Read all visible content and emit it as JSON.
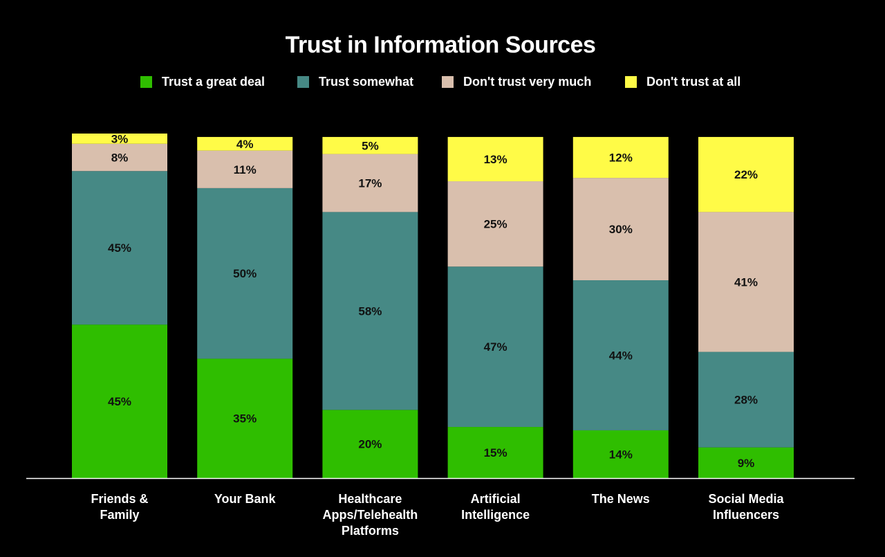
{
  "chart_data": {
    "type": "bar",
    "stacked": true,
    "orientation": "vertical",
    "title": "Trust in Information Sources",
    "xlabel": "",
    "ylabel": "",
    "ylim": [
      0,
      101
    ],
    "grid": false,
    "legend_position": "top",
    "categories": [
      [
        "Friends &",
        "Family"
      ],
      [
        "Your Bank"
      ],
      [
        "Healthcare",
        "Apps/Telehealth",
        "Platforms"
      ],
      [
        "Artificial",
        "Intelligence"
      ],
      [
        "The News"
      ],
      [
        "Social Media",
        "Influencers"
      ]
    ],
    "series": [
      {
        "name": "Trust a great deal",
        "color": "#2fbe00",
        "values": [
          45,
          35,
          20,
          15,
          14,
          9
        ]
      },
      {
        "name": "Trust somewhat",
        "color": "#468985",
        "values": [
          45,
          50,
          58,
          47,
          44,
          28
        ]
      },
      {
        "name": "Don't trust very much",
        "color": "#d9bfad",
        "values": [
          8,
          11,
          17,
          25,
          30,
          41
        ]
      },
      {
        "name": "Don't trust at all",
        "color": "#fffb47",
        "values": [
          3,
          4,
          5,
          13,
          12,
          22
        ]
      }
    ],
    "label_suffix": "%"
  },
  "colors": {
    "background": "#000000",
    "axis": "#ffffff",
    "bar_label": "#111111",
    "text": "#ffffff"
  }
}
